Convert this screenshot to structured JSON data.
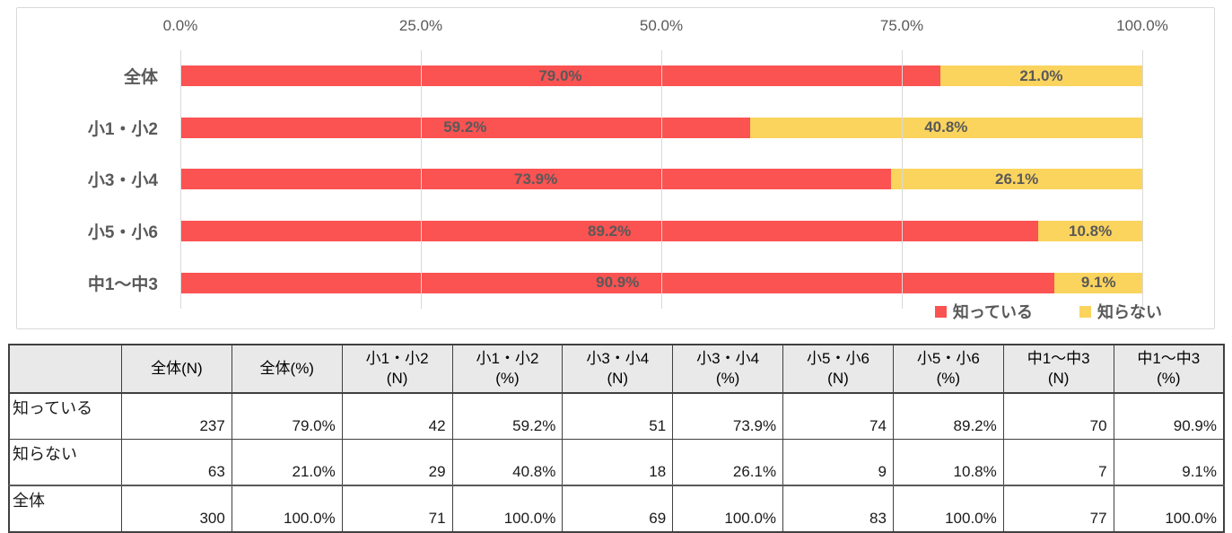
{
  "chart_data": {
    "type": "bar",
    "orientation": "horizontal-stacked-100pct",
    "categories": [
      "全体",
      "小1・小2",
      "小3・小4",
      "小5・小6",
      "中1〜中3"
    ],
    "series": [
      {
        "name": "知っている",
        "color": "#fb5252",
        "values": [
          79.0,
          59.2,
          73.9,
          89.2,
          90.9
        ]
      },
      {
        "name": "知らない",
        "color": "#fbd45e",
        "values": [
          21.0,
          40.8,
          26.1,
          10.8,
          9.1
        ]
      }
    ],
    "x_ticks": [
      "0.0%",
      "25.0%",
      "50.0%",
      "75.0%",
      "100.0%"
    ],
    "xlim": [
      0,
      100
    ],
    "grid": "vertical",
    "legend_position": "bottom-right",
    "data_label_format": "one-decimal-percent",
    "title": "",
    "xlabel": "",
    "ylabel": ""
  },
  "style": {
    "label_text_color": "#595959",
    "gridline_color": "#d9d9d9",
    "frame_border_color": "#d9d9d9",
    "table_header_bg": "#e9e9e9"
  },
  "table": {
    "col_headers": [
      "",
      "全体(N)",
      "全体(%)",
      "小1・小2\n(N)",
      "小1・小2\n(%)",
      "小3・小4\n(N)",
      "小3・小4\n(%)",
      "小5・小6\n(N)",
      "小5・小6\n(%)",
      "中1～中3\n(N)",
      "中1～中3\n(%)"
    ],
    "rows": [
      {
        "label": "知っている",
        "values": [
          "237",
          "79.0%",
          "42",
          "59.2%",
          "51",
          "73.9%",
          "74",
          "89.2%",
          "70",
          "90.9%"
        ]
      },
      {
        "label": "知らない",
        "values": [
          "63",
          "21.0%",
          "29",
          "40.8%",
          "18",
          "26.1%",
          "9",
          "10.8%",
          "7",
          "9.1%"
        ]
      },
      {
        "label": "全体",
        "values": [
          "300",
          "100.0%",
          "71",
          "100.0%",
          "69",
          "100.0%",
          "83",
          "100.0%",
          "77",
          "100.0%"
        ]
      }
    ]
  }
}
